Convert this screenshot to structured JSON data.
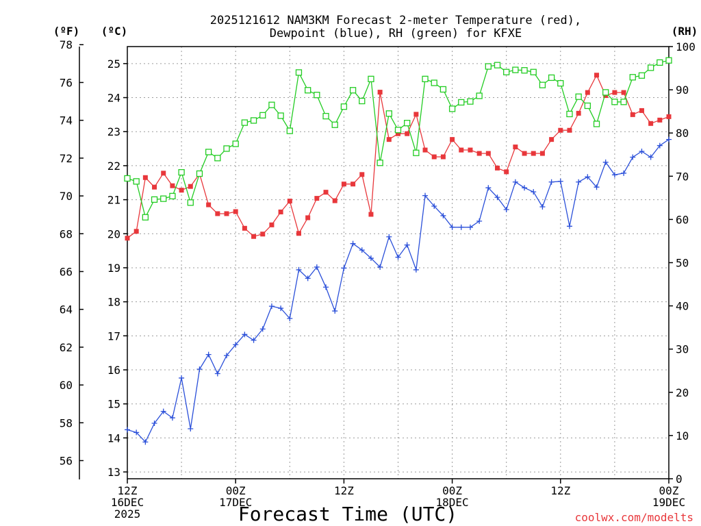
{
  "chart_data": {
    "type": "line",
    "title_line1": "2025121612 NAM3KM Forecast 2-meter Temperature (red),",
    "title_line2": "Dewpoint (blue), RH (green) for KFXE",
    "xlabel": "Forecast Time (UTC)",
    "credit": "coolwx.com/modelts",
    "units": {
      "f": "(ºF)",
      "c": "(ºC)",
      "rh": "(RH)"
    },
    "x_range_hours": [
      0,
      60
    ],
    "c_range": [
      12.8,
      25.5
    ],
    "rh_range": [
      0,
      100
    ],
    "f_ticks": [
      56,
      58,
      60,
      62,
      64,
      66,
      68,
      70,
      72,
      74,
      76,
      78
    ],
    "c_ticks": [
      13,
      14,
      15,
      16,
      17,
      18,
      19,
      20,
      21,
      22,
      23,
      24,
      25
    ],
    "rh_ticks": [
      0,
      10,
      20,
      30,
      40,
      50,
      60,
      70,
      80,
      90,
      100
    ],
    "x_ticks": [
      {
        "hour": 0,
        "lines": [
          "12Z",
          "16DEC",
          "2025"
        ]
      },
      {
        "hour": 12,
        "lines": [
          "00Z",
          "17DEC"
        ]
      },
      {
        "hour": 24,
        "lines": [
          "12Z"
        ]
      },
      {
        "hour": 36,
        "lines": [
          "00Z",
          "18DEC"
        ]
      },
      {
        "hour": 48,
        "lines": [
          "12Z"
        ]
      },
      {
        "hour": 60,
        "lines": [
          "00Z",
          "19DEC"
        ]
      }
    ],
    "series": [
      {
        "name": "Temperature (C)",
        "color": "#e8373b",
        "marker": "filled-square",
        "axis": "c",
        "values": [
          19.87,
          20.07,
          21.65,
          21.37,
          21.78,
          21.41,
          21.28,
          21.39,
          21.76,
          20.85,
          20.59,
          20.59,
          20.65,
          20.16,
          19.92,
          19.99,
          20.26,
          20.64,
          20.96,
          20.01,
          20.47,
          21.04,
          21.22,
          20.97,
          21.46,
          21.46,
          21.74,
          20.57,
          24.16,
          22.77,
          22.94,
          22.94,
          23.51,
          22.46,
          22.26,
          22.26,
          22.77,
          22.46,
          22.46,
          22.36,
          22.36,
          21.93,
          21.82,
          22.55,
          22.36,
          22.36,
          22.36,
          22.77,
          23.04,
          23.04,
          23.54,
          24.15,
          24.66,
          24.06,
          24.15,
          24.15,
          23.5,
          23.62,
          23.24,
          23.34,
          23.44
        ]
      },
      {
        "name": "Dewpoint (C)",
        "color": "#2a4fd9",
        "marker": "plus",
        "axis": "c",
        "values": [
          14.24,
          14.16,
          13.88,
          14.43,
          14.78,
          14.59,
          15.76,
          14.27,
          16.02,
          16.45,
          15.89,
          16.42,
          16.74,
          17.04,
          16.87,
          17.2,
          17.87,
          17.81,
          17.51,
          18.94,
          18.69,
          19.02,
          18.43,
          17.73,
          18.99,
          19.71,
          19.52,
          19.28,
          19.02,
          19.91,
          19.31,
          19.67,
          18.94,
          21.12,
          20.81,
          20.53,
          20.19,
          20.19,
          20.19,
          20.37,
          21.35,
          21.07,
          20.71,
          21.52,
          21.35,
          21.23,
          20.79,
          21.52,
          21.54,
          20.22,
          21.52,
          21.67,
          21.37,
          22.1,
          21.73,
          21.78,
          22.25,
          22.42,
          22.25,
          22.59,
          22.77
        ]
      },
      {
        "name": "RH (%)",
        "color": "#22cc22",
        "marker": "open-square",
        "axis": "rh",
        "values": [
          69.5,
          68.8,
          60.5,
          64.6,
          64.8,
          65.4,
          70.9,
          63.9,
          70.6,
          75.6,
          74.2,
          76.4,
          77.5,
          82.4,
          82.9,
          84.1,
          86.5,
          84.0,
          80.5,
          94.0,
          89.9,
          88.8,
          83.9,
          81.9,
          86.1,
          89.9,
          87.4,
          92.5,
          73.1,
          84.5,
          80.7,
          82.3,
          75.4,
          92.5,
          91.6,
          90.1,
          85.6,
          87.1,
          87.3,
          88.6,
          95.4,
          95.7,
          94.1,
          94.6,
          94.5,
          94.1,
          91.1,
          92.8,
          91.5,
          84.4,
          88.4,
          86.3,
          82.1,
          89.4,
          87.2,
          87.2,
          92.9,
          93.3,
          95.1,
          96.3,
          96.8
        ]
      }
    ]
  }
}
